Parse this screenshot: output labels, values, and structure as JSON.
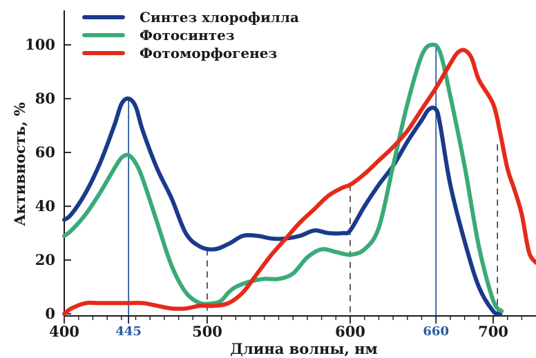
{
  "chart_data": {
    "type": "line",
    "xlabel": "Длина волны, нм",
    "ylabel": "Активность, %",
    "xlim": [
      400,
      730
    ],
    "ylim": [
      0,
      110
    ],
    "x_ticks": [
      {
        "value": 400,
        "label": "400",
        "highlight": false
      },
      {
        "value": 445,
        "label": "445",
        "highlight": true
      },
      {
        "value": 500,
        "label": "500",
        "highlight": false
      },
      {
        "value": 600,
        "label": "600",
        "highlight": false
      },
      {
        "value": 660,
        "label": "660",
        "highlight": true
      },
      {
        "value": 700,
        "label": "700",
        "highlight": false
      }
    ],
    "x_minor_ticks": [
      410,
      420,
      430,
      440,
      450,
      460,
      470,
      480,
      490,
      510,
      520,
      530,
      540,
      550,
      560,
      570,
      580,
      590,
      610,
      620,
      630,
      640,
      650,
      670,
      680,
      690,
      710,
      720
    ],
    "y_ticks": [
      0,
      20,
      40,
      60,
      80,
      100
    ],
    "reference_lines": [
      {
        "x": 445,
        "y": 80,
        "style": "solid",
        "color": "#2a5aa0"
      },
      {
        "x": 500,
        "y": 24,
        "style": "dashed",
        "color": "#1a1a1a"
      },
      {
        "x": 600,
        "y": 48,
        "style": "dashed",
        "color": "#1a1a1a"
      },
      {
        "x": 660,
        "y": 100,
        "style": "solid",
        "color": "#2a5aa0"
      },
      {
        "x": 703,
        "y": 63,
        "style": "dashed",
        "color": "#1a1a1a"
      }
    ],
    "series": [
      {
        "name": "Синтез хлорофилла",
        "color": "#1a3a8a",
        "points": [
          [
            400,
            35
          ],
          [
            405,
            37
          ],
          [
            415,
            45
          ],
          [
            425,
            56
          ],
          [
            435,
            70
          ],
          [
            440,
            78
          ],
          [
            445,
            80
          ],
          [
            450,
            77
          ],
          [
            455,
            68
          ],
          [
            465,
            54
          ],
          [
            475,
            43
          ],
          [
            485,
            30
          ],
          [
            495,
            25
          ],
          [
            505,
            24
          ],
          [
            515,
            26
          ],
          [
            525,
            29
          ],
          [
            535,
            29
          ],
          [
            545,
            28
          ],
          [
            555,
            28
          ],
          [
            565,
            29
          ],
          [
            575,
            31
          ],
          [
            585,
            30
          ],
          [
            595,
            30
          ],
          [
            600,
            31
          ],
          [
            610,
            40
          ],
          [
            620,
            48
          ],
          [
            630,
            55
          ],
          [
            640,
            64
          ],
          [
            650,
            72
          ],
          [
            655,
            76
          ],
          [
            660,
            76
          ],
          [
            663,
            70
          ],
          [
            670,
            48
          ],
          [
            680,
            27
          ],
          [
            690,
            10
          ],
          [
            700,
            1
          ],
          [
            705,
            0
          ]
        ]
      },
      {
        "name": "Фотосинтез",
        "color": "#3aaa78",
        "points": [
          [
            400,
            29
          ],
          [
            405,
            31
          ],
          [
            415,
            37
          ],
          [
            425,
            45
          ],
          [
            435,
            54
          ],
          [
            440,
            58
          ],
          [
            445,
            59
          ],
          [
            450,
            56
          ],
          [
            455,
            50
          ],
          [
            465,
            34
          ],
          [
            475,
            18
          ],
          [
            485,
            8
          ],
          [
            495,
            4
          ],
          [
            505,
            4
          ],
          [
            510,
            5
          ],
          [
            515,
            8
          ],
          [
            520,
            10
          ],
          [
            530,
            12
          ],
          [
            540,
            13
          ],
          [
            550,
            13
          ],
          [
            560,
            15
          ],
          [
            570,
            21
          ],
          [
            580,
            24
          ],
          [
            590,
            23
          ],
          [
            600,
            22
          ],
          [
            610,
            24
          ],
          [
            620,
            32
          ],
          [
            630,
            55
          ],
          [
            640,
            78
          ],
          [
            650,
            96
          ],
          [
            657,
            100
          ],
          [
            663,
            97
          ],
          [
            670,
            81
          ],
          [
            680,
            55
          ],
          [
            690,
            25
          ],
          [
            700,
            5
          ],
          [
            706,
            1
          ]
        ]
      },
      {
        "name": "Фотоморфогенез",
        "color": "#e42a1a",
        "points": [
          [
            400,
            0
          ],
          [
            405,
            2
          ],
          [
            415,
            4
          ],
          [
            425,
            4
          ],
          [
            435,
            4
          ],
          [
            445,
            4
          ],
          [
            455,
            4
          ],
          [
            465,
            3
          ],
          [
            475,
            2
          ],
          [
            485,
            2
          ],
          [
            495,
            3
          ],
          [
            505,
            3
          ],
          [
            515,
            4
          ],
          [
            525,
            8
          ],
          [
            535,
            15
          ],
          [
            545,
            22
          ],
          [
            555,
            28
          ],
          [
            565,
            34
          ],
          [
            575,
            39
          ],
          [
            585,
            44
          ],
          [
            595,
            47
          ],
          [
            600,
            48
          ],
          [
            610,
            52
          ],
          [
            620,
            57
          ],
          [
            630,
            62
          ],
          [
            640,
            68
          ],
          [
            650,
            76
          ],
          [
            660,
            84
          ],
          [
            670,
            93
          ],
          [
            675,
            97
          ],
          [
            680,
            98
          ],
          [
            685,
            95
          ],
          [
            690,
            87
          ],
          [
            700,
            78
          ],
          [
            705,
            67
          ],
          [
            710,
            54
          ],
          [
            715,
            46
          ],
          [
            720,
            37
          ],
          [
            725,
            23
          ],
          [
            730,
            19
          ]
        ]
      }
    ]
  }
}
